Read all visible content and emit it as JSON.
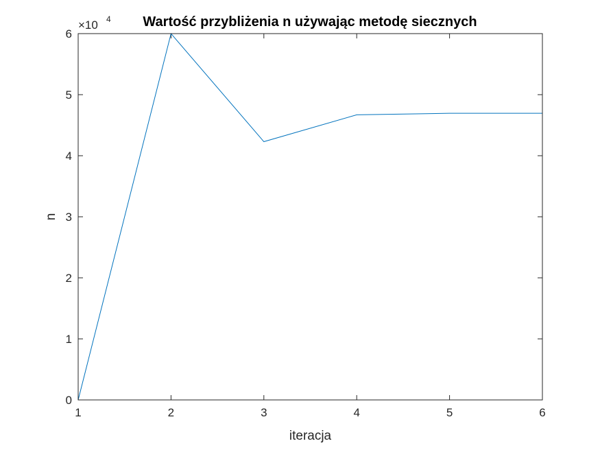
{
  "chart_data": {
    "type": "line",
    "title": "Wartość przybliżenia n używając metodę siecznych",
    "xlabel": "iteracja",
    "ylabel": "n",
    "y_exponent_label": "×10",
    "y_exponent_power": "4",
    "xlim": [
      1,
      6
    ],
    "ylim": [
      0,
      60000
    ],
    "x_ticks": [
      1,
      2,
      3,
      4,
      5,
      6
    ],
    "y_ticks": [
      0,
      10000,
      20000,
      30000,
      40000,
      50000,
      60000
    ],
    "y_tick_labels": [
      "0",
      "1",
      "2",
      "3",
      "4",
      "5",
      "6"
    ],
    "grid": false,
    "box": true,
    "series": [
      {
        "color": "#0072BD",
        "x": [
          1,
          2,
          3,
          4,
          5,
          6
        ],
        "y": [
          0,
          60000,
          42300,
          46700,
          46950,
          46950
        ]
      }
    ]
  }
}
